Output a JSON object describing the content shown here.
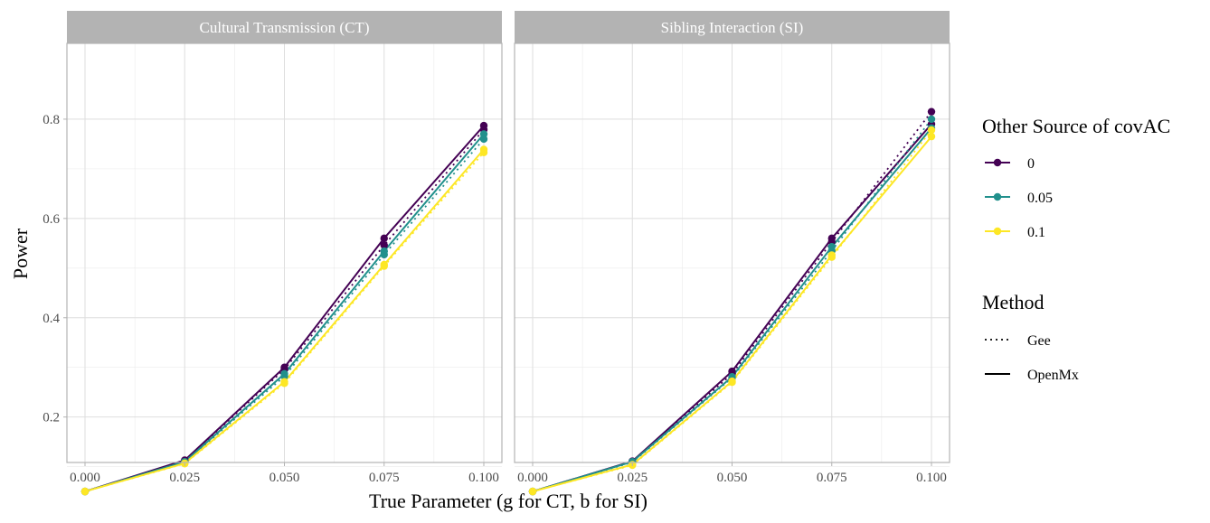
{
  "chart_data": {
    "type": "line",
    "xlabel": "True Parameter (g for CT, b for SI)",
    "ylabel": "Power",
    "x_ticks": [
      "0.000",
      "0.025",
      "0.050",
      "0.075",
      "0.100"
    ],
    "y_ticks": [
      "0.2",
      "0.4",
      "0.6",
      "0.8"
    ],
    "xlim": [
      0.0,
      0.1
    ],
    "ylim": [
      0.0,
      0.85
    ],
    "grid": true,
    "legend_placement": "right",
    "legends": {
      "color": {
        "title": "Other Source of covAC",
        "entries": [
          {
            "label": "0",
            "color": "#440154"
          },
          {
            "label": "0.05",
            "color": "#21908C"
          },
          {
            "label": "0.1",
            "color": "#FDE725"
          }
        ]
      },
      "linetype": {
        "title": "Method",
        "entries": [
          {
            "label": "Gee",
            "style": "dotted"
          },
          {
            "label": "OpenMx",
            "style": "solid"
          }
        ]
      }
    },
    "x": [
      0.0,
      0.025,
      0.05,
      0.075,
      0.1
    ],
    "panels": [
      {
        "title": "Cultural Transmission (CT)",
        "series": [
          {
            "name": "0",
            "method": "OpenMx",
            "color": "#440154",
            "values": [
              0.05,
              0.113,
              0.3,
              0.56,
              0.787
            ]
          },
          {
            "name": "0",
            "method": "Gee",
            "color": "#440154",
            "values": [
              0.05,
              0.112,
              0.296,
              0.546,
              0.779
            ]
          },
          {
            "name": "0.05",
            "method": "OpenMx",
            "color": "#21908C",
            "values": [
              0.05,
              0.11,
              0.287,
              0.534,
              0.77
            ]
          },
          {
            "name": "0.05",
            "method": "Gee",
            "color": "#21908C",
            "values": [
              0.05,
              0.109,
              0.282,
              0.527,
              0.76
            ]
          },
          {
            "name": "0.1",
            "method": "OpenMx",
            "color": "#FDE725",
            "values": [
              0.05,
              0.107,
              0.271,
              0.507,
              0.739
            ]
          },
          {
            "name": "0.1",
            "method": "Gee",
            "color": "#FDE725",
            "values": [
              0.05,
              0.106,
              0.268,
              0.504,
              0.733
            ]
          }
        ]
      },
      {
        "title": "Sibling Interaction (SI)",
        "series": [
          {
            "name": "0",
            "method": "OpenMx",
            "color": "#440154",
            "values": [
              0.05,
              0.111,
              0.292,
              0.56,
              0.79
            ]
          },
          {
            "name": "0",
            "method": "Gee",
            "color": "#440154",
            "values": [
              0.05,
              0.11,
              0.287,
              0.553,
              0.815
            ]
          },
          {
            "name": "0.05",
            "method": "OpenMx",
            "color": "#21908C",
            "values": [
              0.05,
              0.11,
              0.281,
              0.543,
              0.782
            ]
          },
          {
            "name": "0.05",
            "method": "Gee",
            "color": "#21908C",
            "values": [
              0.05,
              0.109,
              0.279,
              0.535,
              0.8
            ]
          },
          {
            "name": "0.1",
            "method": "OpenMx",
            "color": "#FDE725",
            "values": [
              0.05,
              0.104,
              0.272,
              0.526,
              0.765
            ]
          },
          {
            "name": "0.1",
            "method": "Gee",
            "color": "#FDE725",
            "values": [
              0.05,
              0.103,
              0.27,
              0.522,
              0.778
            ]
          }
        ]
      }
    ]
  }
}
